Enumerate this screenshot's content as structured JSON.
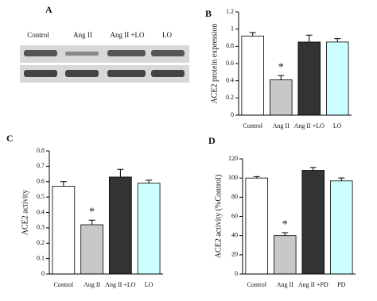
{
  "blot": {
    "label": "A",
    "lanes": [
      "Control",
      "Ang II",
      "Ang II +LO",
      "LO"
    ]
  },
  "chart_data": [
    {
      "type": "bar",
      "label": "B",
      "ylabel": "ACE2 protein expression",
      "categories": [
        "Control",
        "Ang II",
        "Ang II +LO",
        "LO"
      ],
      "values": [
        0.92,
        0.41,
        0.85,
        0.85
      ],
      "errors": [
        0.04,
        0.05,
        0.08,
        0.04
      ],
      "colors": [
        "#ffffff",
        "#c8c8c8",
        "#333333",
        "#ccffff"
      ],
      "ylim": [
        0,
        1.2
      ],
      "yticks": [
        0,
        0.2,
        0.4,
        0.6,
        0.8,
        1,
        1.2
      ],
      "annotation": "*"
    },
    {
      "type": "bar",
      "label": "C",
      "ylabel": "ACE2 activity",
      "categories": [
        "Control",
        "Ang II",
        "Ang II +LO",
        "LO"
      ],
      "values": [
        0.57,
        0.32,
        0.63,
        0.59
      ],
      "errors": [
        0.03,
        0.03,
        0.05,
        0.02
      ],
      "colors": [
        "#ffffff",
        "#c8c8c8",
        "#333333",
        "#ccffff"
      ],
      "ylim": [
        0,
        0.8
      ],
      "yticks": [
        0,
        0.1,
        0.2,
        0.3,
        0.4,
        0.5,
        0.6,
        0.7,
        0.8
      ],
      "annotation": "*"
    },
    {
      "type": "bar",
      "label": "D",
      "ylabel": "ACE2 activity (%Control)",
      "categories": [
        "Control",
        "Ang II",
        "Ang II +PD",
        "PD"
      ],
      "values": [
        100,
        40,
        108,
        97
      ],
      "errors": [
        1.5,
        3,
        3,
        3
      ],
      "colors": [
        "#ffffff",
        "#c8c8c8",
        "#333333",
        "#ccffff"
      ],
      "ylim": [
        0,
        120
      ],
      "yticks": [
        0,
        20,
        40,
        60,
        80,
        100,
        120
      ],
      "annotation": "*"
    }
  ]
}
